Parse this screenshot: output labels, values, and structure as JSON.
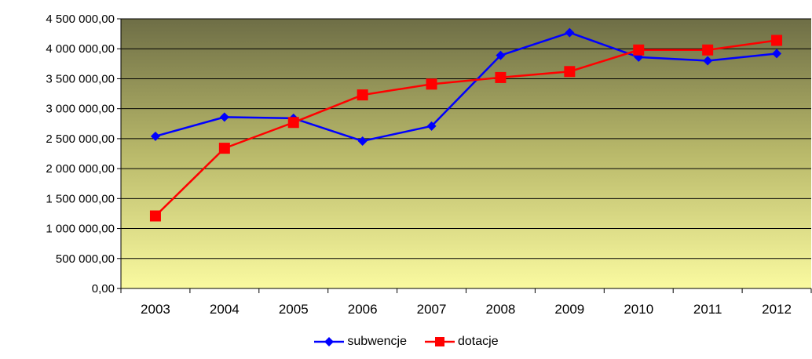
{
  "chart_data": {
    "type": "line",
    "categories": [
      "2003",
      "2004",
      "2005",
      "2006",
      "2007",
      "2008",
      "2009",
      "2010",
      "2011",
      "2012"
    ],
    "series": [
      {
        "name": "subwencje",
        "color": "#0000ff",
        "marker": "diamond",
        "values": [
          2540000,
          2860000,
          2840000,
          2460000,
          2710000,
          3890000,
          4270000,
          3860000,
          3800000,
          3920000
        ]
      },
      {
        "name": "dotacje",
        "color": "#ff0000",
        "marker": "square",
        "values": [
          1210000,
          2340000,
          2770000,
          3230000,
          3410000,
          3520000,
          3620000,
          3980000,
          3980000,
          4140000
        ]
      }
    ],
    "y_ticks": [
      "0,00",
      "500 000,00",
      "1 000 000,00",
      "1 500 000,00",
      "2 000 000,00",
      "2 500 000,00",
      "3 000 000,00",
      "3 500 000,00",
      "4 000 000,00",
      "4 500 000,00"
    ],
    "ylim": [
      0,
      4500000
    ],
    "title": "",
    "xlabel": "",
    "ylabel": "",
    "grid": true,
    "legend_position": "bottom",
    "plot_background": [
      "#6e6e46",
      "#fafaa0"
    ]
  }
}
